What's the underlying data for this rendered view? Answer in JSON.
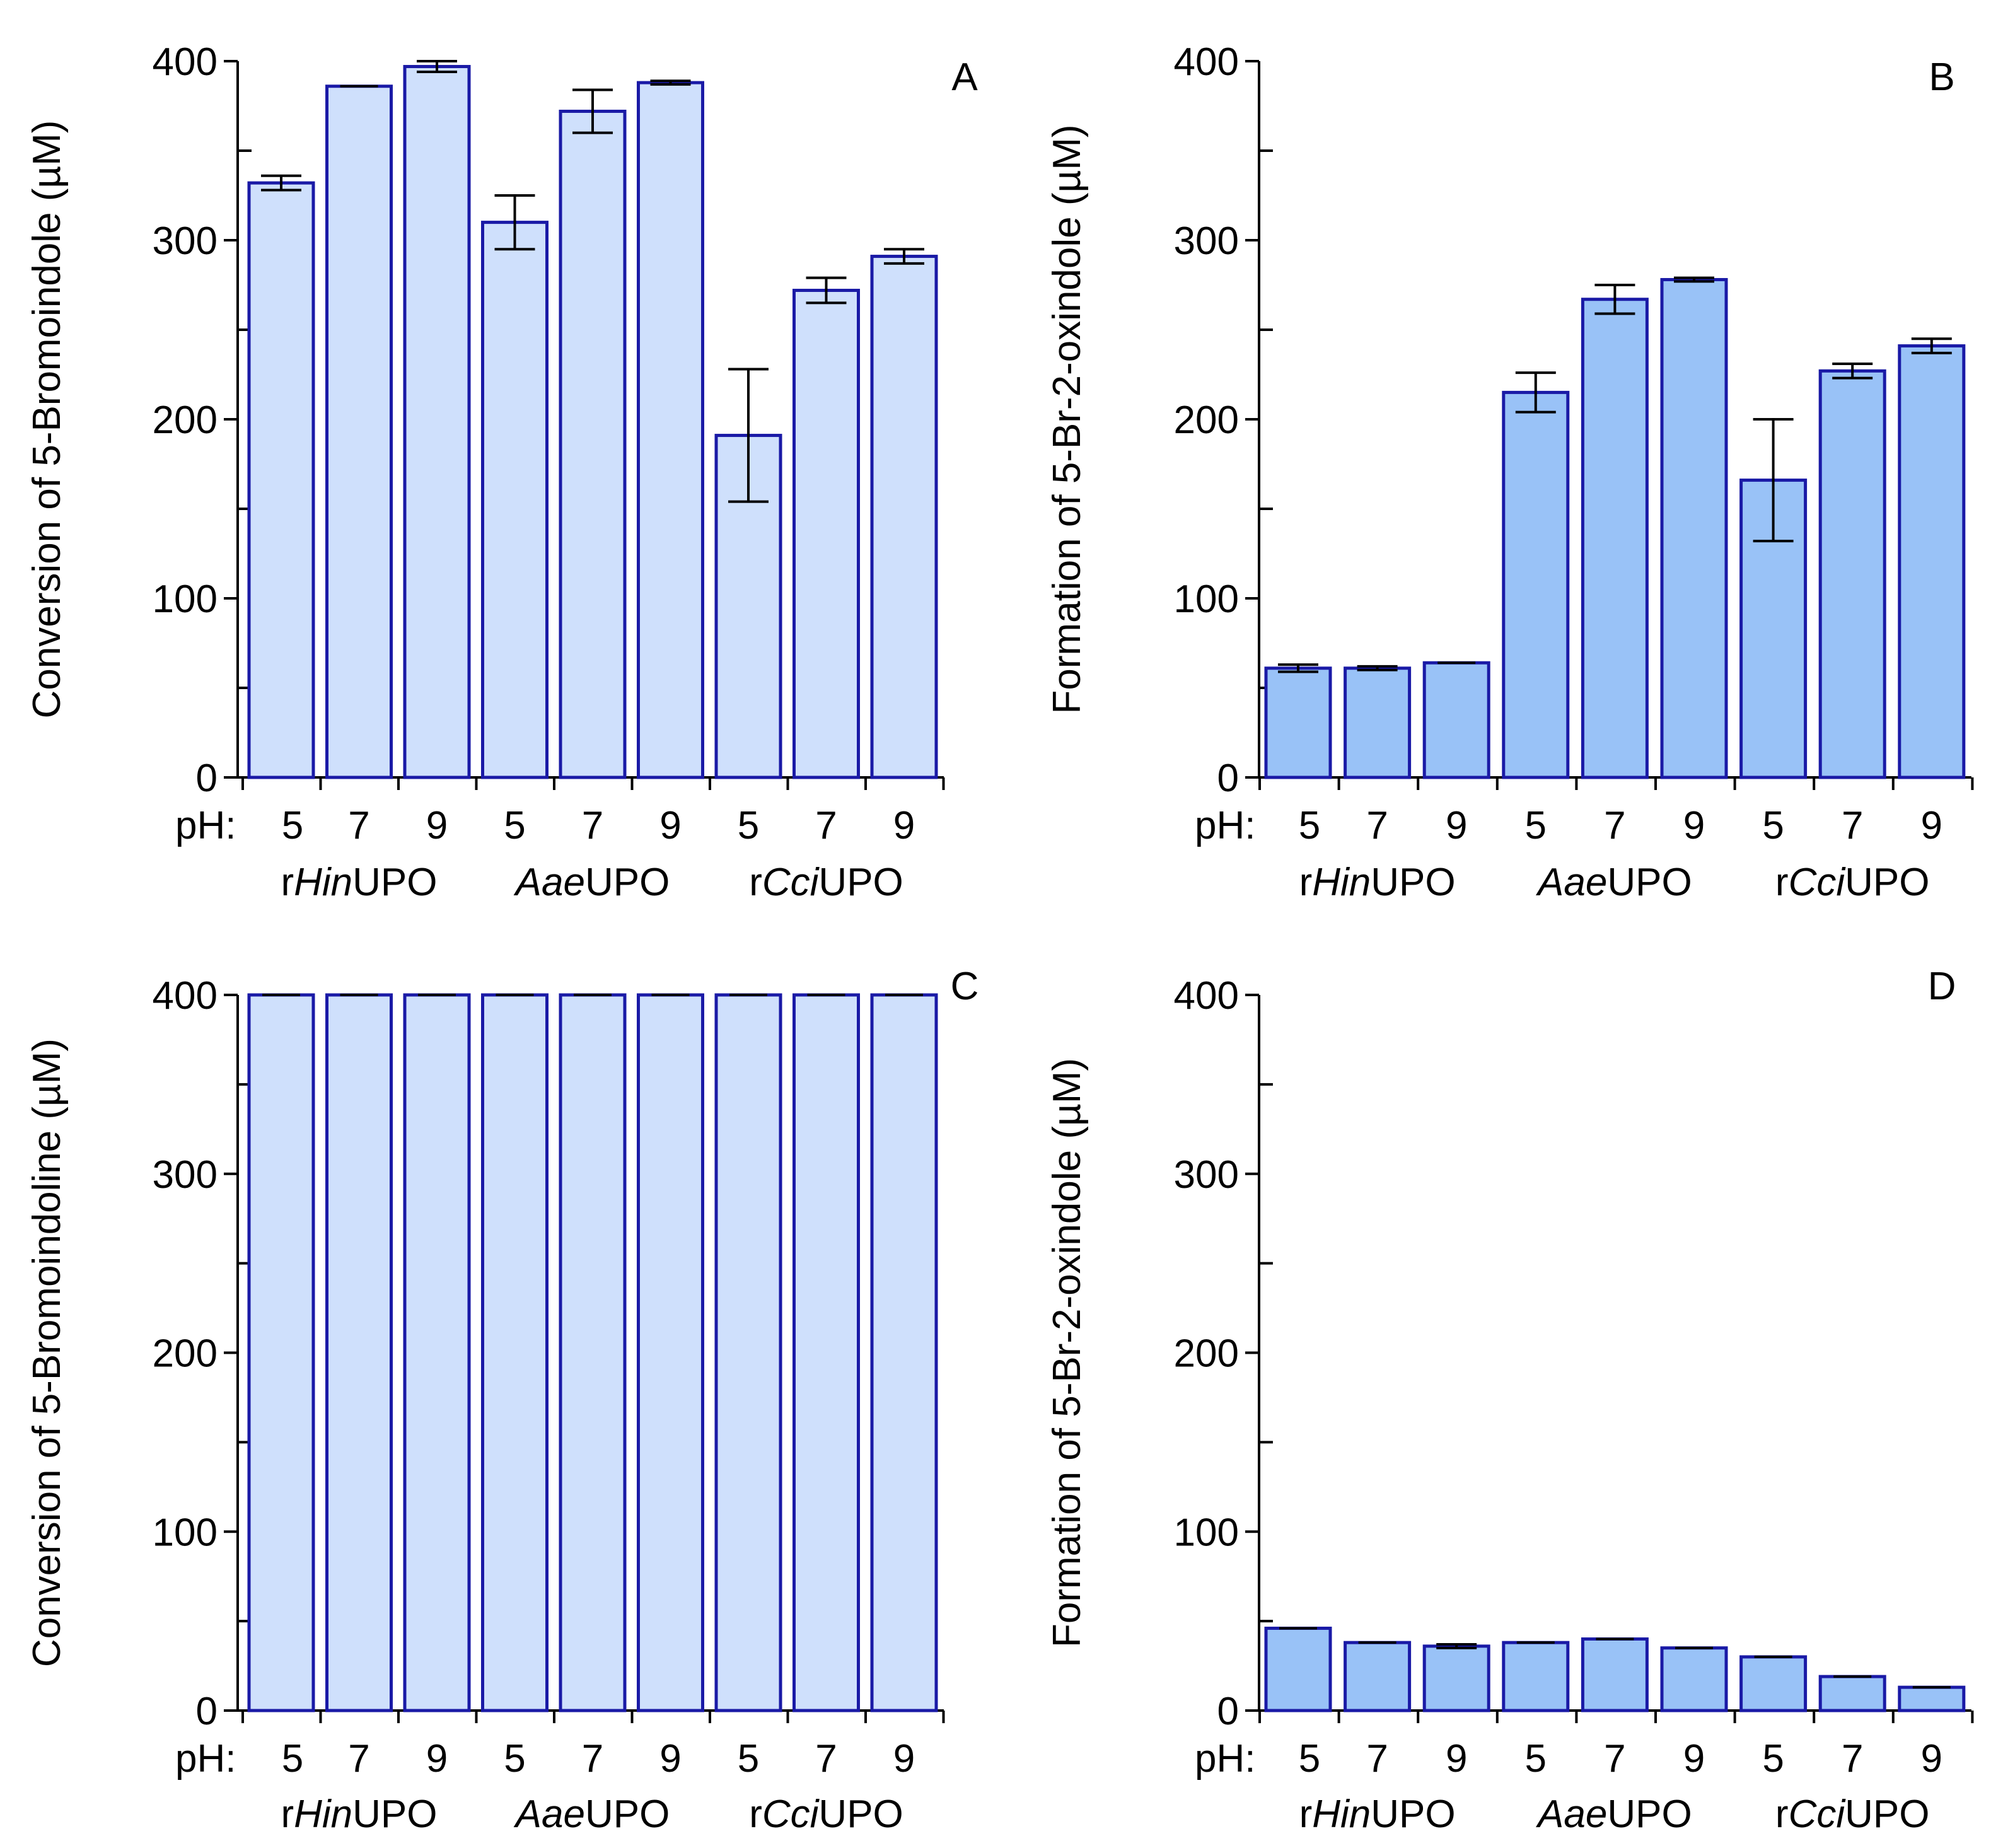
{
  "colors": {
    "bar_stroke": "#1a1aa6",
    "conversion_fill": "#cfe0fc",
    "formation_fill": "#99c2f7"
  },
  "chart_data": [
    {
      "panel": "A",
      "type": "bar",
      "ylabel": "Conversion of 5-Bromoindole (µM)",
      "ylim": [
        0,
        400
      ],
      "yticks": [
        0,
        100,
        200,
        300,
        400
      ],
      "fill": "conversion",
      "ph_prefix": "pH:",
      "categories": [
        "5",
        "7",
        "9",
        "5",
        "7",
        "9",
        "5",
        "7",
        "9"
      ],
      "groups": [
        {
          "pre": "r",
          "it": "Hin",
          "post": "UPO"
        },
        {
          "pre": "",
          "it": "Aae",
          "post": "UPO"
        },
        {
          "pre": "r",
          "it": "Cci",
          "post": "UPO"
        }
      ],
      "values": [
        332,
        386,
        397,
        310,
        372,
        388,
        191,
        272,
        291
      ],
      "errors": [
        4,
        0,
        3,
        15,
        12,
        1,
        37,
        7,
        4
      ]
    },
    {
      "panel": "B",
      "type": "bar",
      "ylabel": "Formation of 5-Br-2-oxindole (µM)",
      "ylim": [
        0,
        400
      ],
      "yticks": [
        0,
        100,
        200,
        300,
        400
      ],
      "fill": "formation",
      "ph_prefix": "pH:",
      "categories": [
        "5",
        "7",
        "9",
        "5",
        "7",
        "9",
        "5",
        "7",
        "9"
      ],
      "groups": [
        {
          "pre": "r",
          "it": "Hin",
          "post": "UPO"
        },
        {
          "pre": "",
          "it": "Aae",
          "post": "UPO"
        },
        {
          "pre": "r",
          "it": "Cci",
          "post": "UPO"
        }
      ],
      "values": [
        61,
        61,
        64,
        215,
        267,
        278,
        166,
        227,
        241
      ],
      "errors": [
        2,
        1,
        0,
        11,
        8,
        1,
        34,
        4,
        4
      ]
    },
    {
      "panel": "C",
      "type": "bar",
      "ylabel": "Conversion of 5-Bromoindoline (µM)",
      "ylim": [
        0,
        400
      ],
      "yticks": [
        0,
        100,
        200,
        300,
        400
      ],
      "fill": "conversion",
      "ph_prefix": "pH:",
      "categories": [
        "5",
        "7",
        "9",
        "5",
        "7",
        "9",
        "5",
        "7",
        "9"
      ],
      "groups": [
        {
          "pre": "r",
          "it": "Hin",
          "post": "UPO"
        },
        {
          "pre": "",
          "it": "Aae",
          "post": "UPO"
        },
        {
          "pre": "r",
          "it": "Cci",
          "post": "UPO"
        }
      ],
      "values": [
        400,
        400,
        400,
        400,
        400,
        400,
        400,
        400,
        400
      ],
      "errors": [
        0,
        0,
        0,
        0,
        0,
        0,
        0,
        0,
        0
      ]
    },
    {
      "panel": "D",
      "type": "bar",
      "ylabel": "Formation of 5-Br-2-oxindole (µM)",
      "ylim": [
        0,
        400
      ],
      "yticks": [
        0,
        100,
        200,
        300,
        400
      ],
      "fill": "formation",
      "ph_prefix": "pH:",
      "categories": [
        "5",
        "7",
        "9",
        "5",
        "7",
        "9",
        "5",
        "7",
        "9"
      ],
      "groups": [
        {
          "pre": "r",
          "it": "Hin",
          "post": "UPO"
        },
        {
          "pre": "",
          "it": "Aae",
          "post": "UPO"
        },
        {
          "pre": "r",
          "it": "Cci",
          "post": "UPO"
        }
      ],
      "values": [
        46,
        38,
        36,
        38,
        40,
        35,
        30,
        19,
        13
      ],
      "errors": [
        0,
        0,
        1,
        0,
        0,
        0,
        0,
        0,
        0
      ]
    }
  ]
}
